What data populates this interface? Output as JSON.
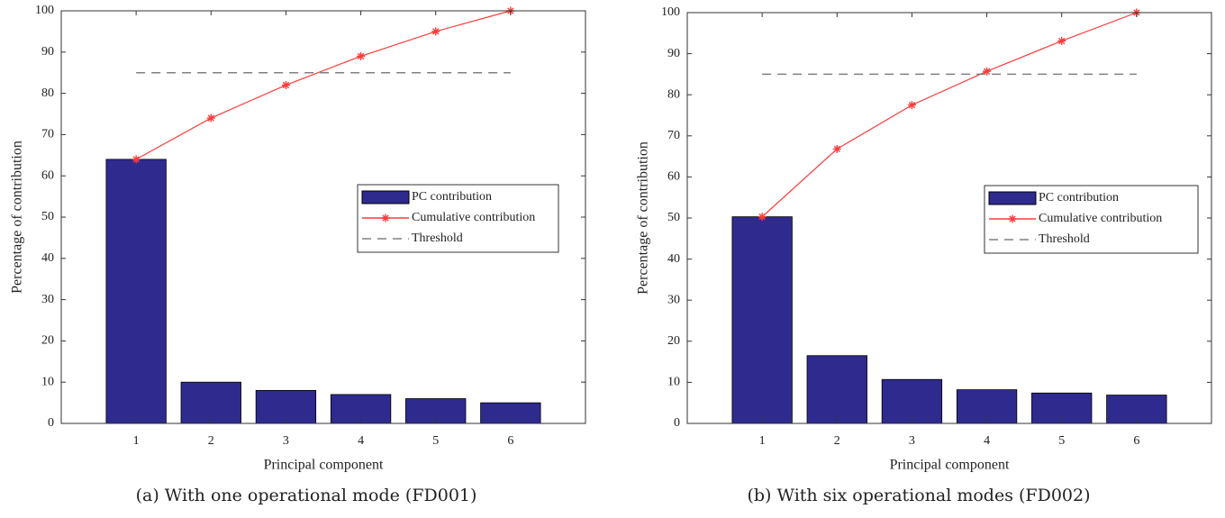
{
  "chart_data": [
    {
      "type": "bar",
      "caption": "(a) With one operational mode (FD001)",
      "xlabel": "Principal component",
      "ylabel": "Percentage of contribution",
      "x": [
        1,
        2,
        3,
        4,
        5,
        6
      ],
      "xlim": [
        0,
        7
      ],
      "xticks": [
        1,
        2,
        3,
        4,
        5,
        6
      ],
      "ylim": [
        0,
        100
      ],
      "yticks": [
        0,
        10,
        20,
        30,
        40,
        50,
        60,
        70,
        80,
        90,
        100
      ],
      "legend_position": "east",
      "series": [
        {
          "name": "PC contribution",
          "type": "bar",
          "color": "#2e2a8e",
          "values": [
            64,
            10,
            8,
            7,
            6,
            5
          ]
        },
        {
          "name": "Cumulative contribution",
          "type": "line",
          "marker": "*",
          "color": "#ff3b3b",
          "values": [
            64,
            74,
            82,
            89,
            95,
            100
          ]
        },
        {
          "name": "Threshold",
          "type": "line",
          "dash": "dashed",
          "color": "#808080",
          "values": [
            85,
            85,
            85,
            85,
            85,
            85
          ]
        }
      ]
    },
    {
      "type": "bar",
      "caption": "(b) With six operational modes (FD002)",
      "xlabel": "Principal component",
      "ylabel": "Percentage of contribution",
      "x": [
        1,
        2,
        3,
        4,
        5,
        6
      ],
      "xlim": [
        0,
        7
      ],
      "xticks": [
        1,
        2,
        3,
        4,
        5,
        6
      ],
      "ylim": [
        0,
        100
      ],
      "yticks": [
        0,
        10,
        20,
        30,
        40,
        50,
        60,
        70,
        80,
        90,
        100
      ],
      "legend_position": "east",
      "series": [
        {
          "name": "PC contribution",
          "type": "bar",
          "color": "#2e2a8e",
          "values": [
            50.3,
            16.5,
            10.7,
            8.2,
            7.4,
            6.9
          ]
        },
        {
          "name": "Cumulative contribution",
          "type": "line",
          "marker": "*",
          "color": "#ff3b3b",
          "values": [
            50.3,
            66.8,
            77.5,
            85.7,
            93.1,
            100
          ]
        },
        {
          "name": "Threshold",
          "type": "line",
          "dash": "dashed",
          "color": "#808080",
          "values": [
            85,
            85,
            85,
            85,
            85,
            85
          ]
        }
      ]
    }
  ]
}
